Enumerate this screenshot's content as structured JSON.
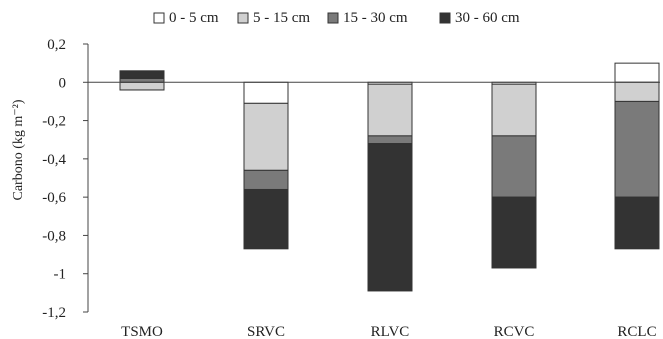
{
  "chart_data": {
    "type": "bar",
    "stacked": true,
    "ylabel": "Carbono (kg m⁻²)",
    "ylim": [
      -1.2,
      0.2
    ],
    "yticks": [
      0.2,
      0,
      -0.2,
      -0.4,
      -0.6,
      -0.8,
      -1,
      -1.2
    ],
    "ytick_labels": [
      "0,2",
      "0",
      "-0,2",
      "-0,4",
      "-0,6",
      "-0,8",
      "-1",
      "-1,2"
    ],
    "categories": [
      "TSMO",
      "SRVC",
      "RLVC",
      "RCVC",
      "RCLC"
    ],
    "legend_position": "top",
    "grid": false,
    "series": [
      {
        "name": "0 - 5 cm",
        "color": "#ffffff",
        "segments": [
          [
            0.0,
            -0.04
          ],
          [
            0.0,
            -0.11
          ],
          [
            0.0,
            -0.01
          ],
          [
            0.0,
            -0.01
          ],
          [
            0.0,
            0.1
          ]
        ]
      },
      {
        "name": "5 - 15 cm",
        "color": "#d0d0d0",
        "segments": [
          [
            -0.04,
            0.0
          ],
          [
            -0.11,
            -0.46
          ],
          [
            -0.01,
            -0.28
          ],
          [
            -0.01,
            -0.28
          ],
          [
            0.0,
            -0.1
          ]
        ]
      },
      {
        "name": "15 - 30 cm",
        "color": "#7a7a7a",
        "segments": [
          [
            0.0,
            0.02
          ],
          [
            -0.46,
            -0.56
          ],
          [
            -0.28,
            -0.32
          ],
          [
            -0.28,
            -0.6
          ],
          [
            -0.1,
            -0.6
          ]
        ]
      },
      {
        "name": "30 - 60 cm",
        "color": "#333333",
        "segments": [
          [
            0.02,
            0.06
          ],
          [
            -0.56,
            -0.87
          ],
          [
            -0.32,
            -1.09
          ],
          [
            -0.6,
            -0.97
          ],
          [
            -0.6,
            -0.87
          ]
        ]
      }
    ]
  }
}
